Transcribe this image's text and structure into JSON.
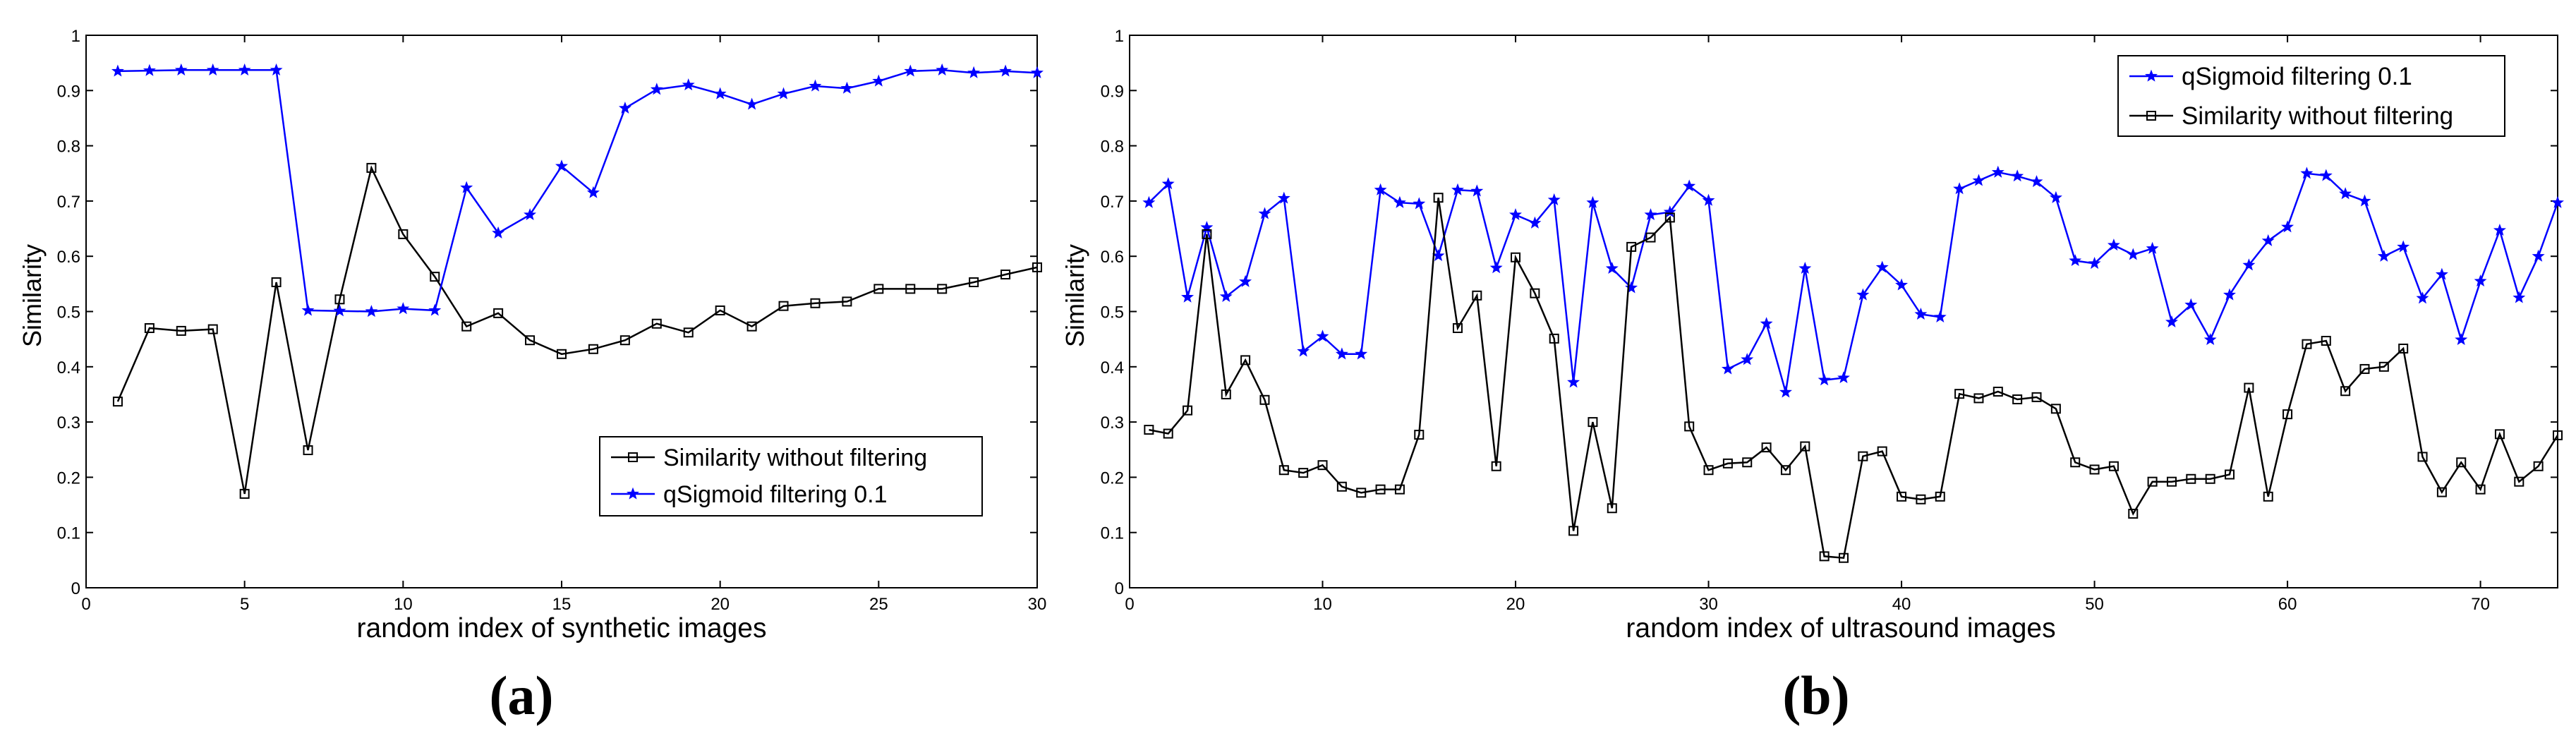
{
  "chart_data": [
    {
      "type": "line",
      "panel_label": "(a)",
      "title": "",
      "xlabel": "random index of synthetic images",
      "ylabel": "Similarity",
      "xlim": [
        0,
        30
      ],
      "ylim": [
        0,
        1
      ],
      "xticks": [
        0,
        5,
        10,
        15,
        20,
        25,
        30
      ],
      "yticks": [
        0,
        0.1,
        0.2,
        0.3,
        0.4,
        0.5,
        0.6,
        0.7,
        0.8,
        0.9,
        1
      ],
      "grid": false,
      "legend_position": "bottom-right",
      "x": [
        1,
        2,
        3,
        4,
        5,
        6,
        7,
        8,
        9,
        10,
        11,
        12,
        13,
        14,
        15,
        16,
        17,
        18,
        19,
        20,
        21,
        22,
        23,
        24,
        25,
        26,
        27,
        28,
        29,
        30
      ],
      "series": [
        {
          "name": "Similarity without filtering",
          "color": "#000000",
          "marker": "square",
          "values": [
            0.337,
            0.47,
            0.465,
            0.468,
            0.17,
            0.553,
            0.249,
            0.522,
            0.76,
            0.64,
            0.563,
            0.473,
            0.497,
            0.448,
            0.423,
            0.432,
            0.448,
            0.478,
            0.462,
            0.502,
            0.473,
            0.51,
            0.515,
            0.518,
            0.541,
            0.541,
            0.541,
            0.553,
            0.567,
            0.58
          ]
        },
        {
          "name": "qSigmoid filtering 0.1",
          "color": "#0000ff",
          "marker": "star",
          "values": [
            0.935,
            0.936,
            0.937,
            0.937,
            0.937,
            0.937,
            0.502,
            0.501,
            0.5,
            0.505,
            0.502,
            0.724,
            0.642,
            0.675,
            0.763,
            0.715,
            0.868,
            0.902,
            0.91,
            0.894,
            0.875,
            0.894,
            0.908,
            0.904,
            0.917,
            0.935,
            0.937,
            0.932,
            0.935,
            0.932
          ]
        }
      ]
    },
    {
      "type": "line",
      "panel_label": "(b)",
      "title": "",
      "xlabel": "random index of ultrasound images",
      "ylabel": "Similarity",
      "xlim": [
        0,
        74
      ],
      "ylim": [
        0,
        1
      ],
      "xticks": [
        0,
        10,
        20,
        30,
        40,
        50,
        60,
        70
      ],
      "yticks": [
        0,
        0.1,
        0.2,
        0.3,
        0.4,
        0.5,
        0.6,
        0.7,
        0.8,
        0.9,
        1
      ],
      "grid": false,
      "legend_position": "top-right",
      "x": [
        1,
        2,
        3,
        4,
        5,
        6,
        7,
        8,
        9,
        10,
        11,
        12,
        13,
        14,
        15,
        16,
        17,
        18,
        19,
        20,
        21,
        22,
        23,
        24,
        25,
        26,
        27,
        28,
        29,
        30,
        31,
        32,
        33,
        34,
        35,
        36,
        37,
        38,
        39,
        40,
        41,
        42,
        43,
        44,
        45,
        46,
        47,
        48,
        49,
        50,
        51,
        52,
        53,
        54,
        55,
        56,
        57,
        58,
        59,
        60,
        61,
        62,
        63,
        64,
        65,
        66,
        67,
        68,
        69,
        70,
        71,
        72,
        73,
        74
      ],
      "series": [
        {
          "name": "qSigmoid filtering 0.1",
          "color": "#0000ff",
          "marker": "star",
          "values": [
            0.697,
            0.731,
            0.526,
            0.652,
            0.527,
            0.554,
            0.677,
            0.705,
            0.428,
            0.455,
            0.423,
            0.423,
            0.72,
            0.697,
            0.695,
            0.601,
            0.72,
            0.718,
            0.579,
            0.675,
            0.66,
            0.702,
            0.372,
            0.697,
            0.578,
            0.543,
            0.675,
            0.68,
            0.727,
            0.701,
            0.396,
            0.413,
            0.478,
            0.354,
            0.578,
            0.376,
            0.38,
            0.53,
            0.58,
            0.548,
            0.495,
            0.49,
            0.722,
            0.737,
            0.752,
            0.745,
            0.735,
            0.706,
            0.592,
            0.587,
            0.62,
            0.603,
            0.614,
            0.481,
            0.512,
            0.449,
            0.53,
            0.584,
            0.628,
            0.653,
            0.75,
            0.746,
            0.713,
            0.7,
            0.6,
            0.617,
            0.524,
            0.567,
            0.449,
            0.555,
            0.647,
            0.525,
            0.6,
            0.697
          ]
        },
        {
          "name": "Similarity without filtering",
          "color": "#000000",
          "marker": "square",
          "values": [
            0.286,
            0.279,
            0.321,
            0.64,
            0.35,
            0.412,
            0.34,
            0.213,
            0.208,
            0.222,
            0.183,
            0.172,
            0.178,
            0.178,
            0.277,
            0.706,
            0.47,
            0.529,
            0.22,
            0.598,
            0.533,
            0.451,
            0.103,
            0.3,
            0.144,
            0.617,
            0.634,
            0.67,
            0.292,
            0.213,
            0.225,
            0.227,
            0.254,
            0.213,
            0.256,
            0.057,
            0.054,
            0.238,
            0.247,
            0.165,
            0.16,
            0.165,
            0.351,
            0.343,
            0.355,
            0.341,
            0.345,
            0.324,
            0.227,
            0.214,
            0.22,
            0.134,
            0.192,
            0.192,
            0.197,
            0.197,
            0.205,
            0.362,
            0.165,
            0.314,
            0.441,
            0.447,
            0.356,
            0.396,
            0.4,
            0.433,
            0.237,
            0.173,
            0.227,
            0.178,
            0.278,
            0.192,
            0.22,
            0.276
          ]
        }
      ]
    }
  ]
}
